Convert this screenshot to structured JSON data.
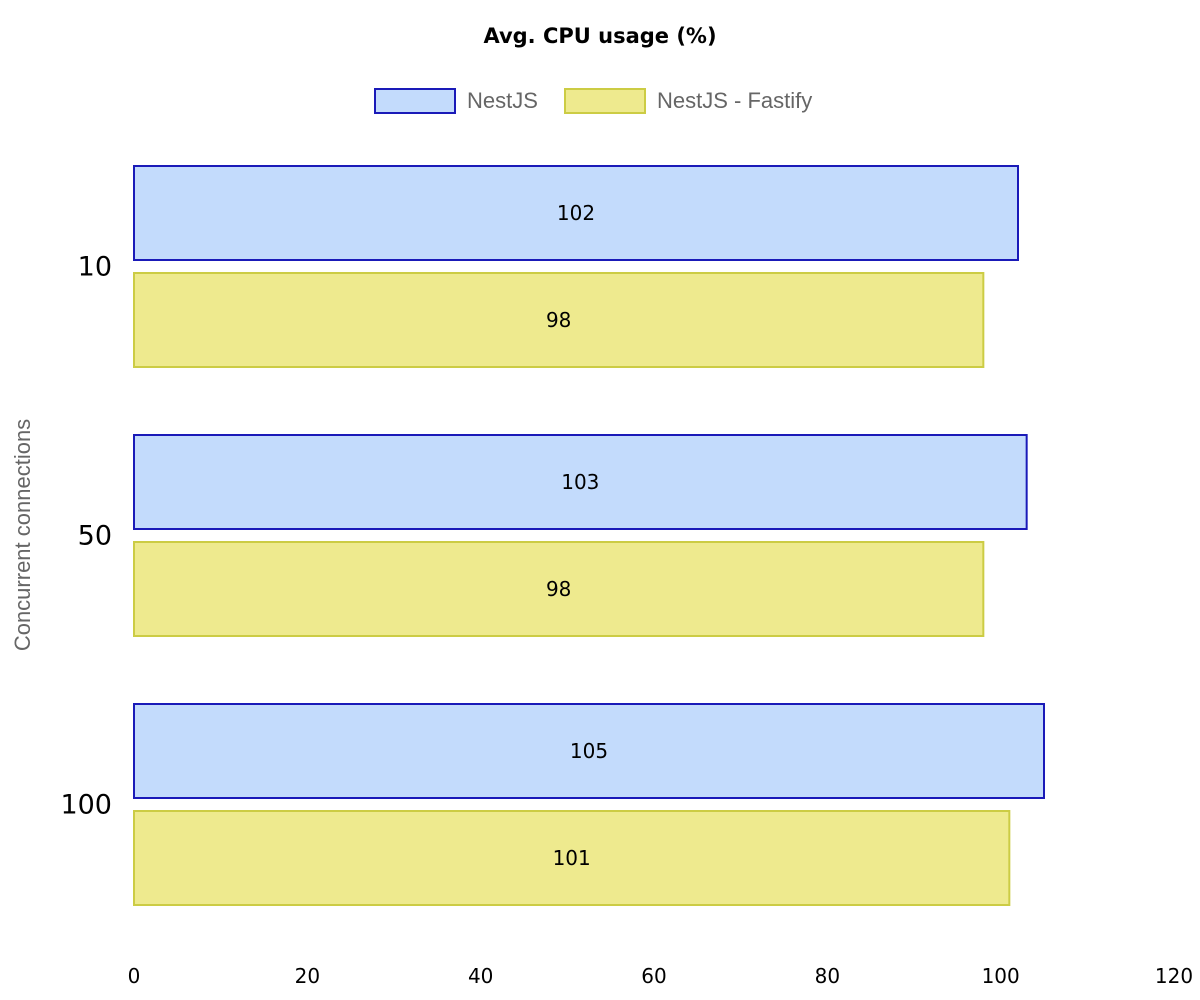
{
  "chart_data": {
    "type": "bar",
    "orientation": "horizontal",
    "title": "Avg. CPU usage (%)",
    "xlabel": "",
    "ylabel": "Concurrent connections",
    "categories": [
      "10",
      "50",
      "100"
    ],
    "series": [
      {
        "name": "NestJS",
        "values": [
          102,
          103,
          105
        ],
        "fill": "#c3dbfc",
        "stroke": "#1a1ab8"
      },
      {
        "name": "NestJS - Fastify",
        "values": [
          98,
          98,
          101
        ],
        "fill": "#eeea8e",
        "stroke": "#cccc44"
      }
    ],
    "xlim": [
      0,
      120
    ],
    "xticks": [
      "0",
      "20",
      "40",
      "60",
      "80",
      "100",
      "120"
    ],
    "grid": false,
    "legend": "top-center",
    "data_labels": true
  }
}
